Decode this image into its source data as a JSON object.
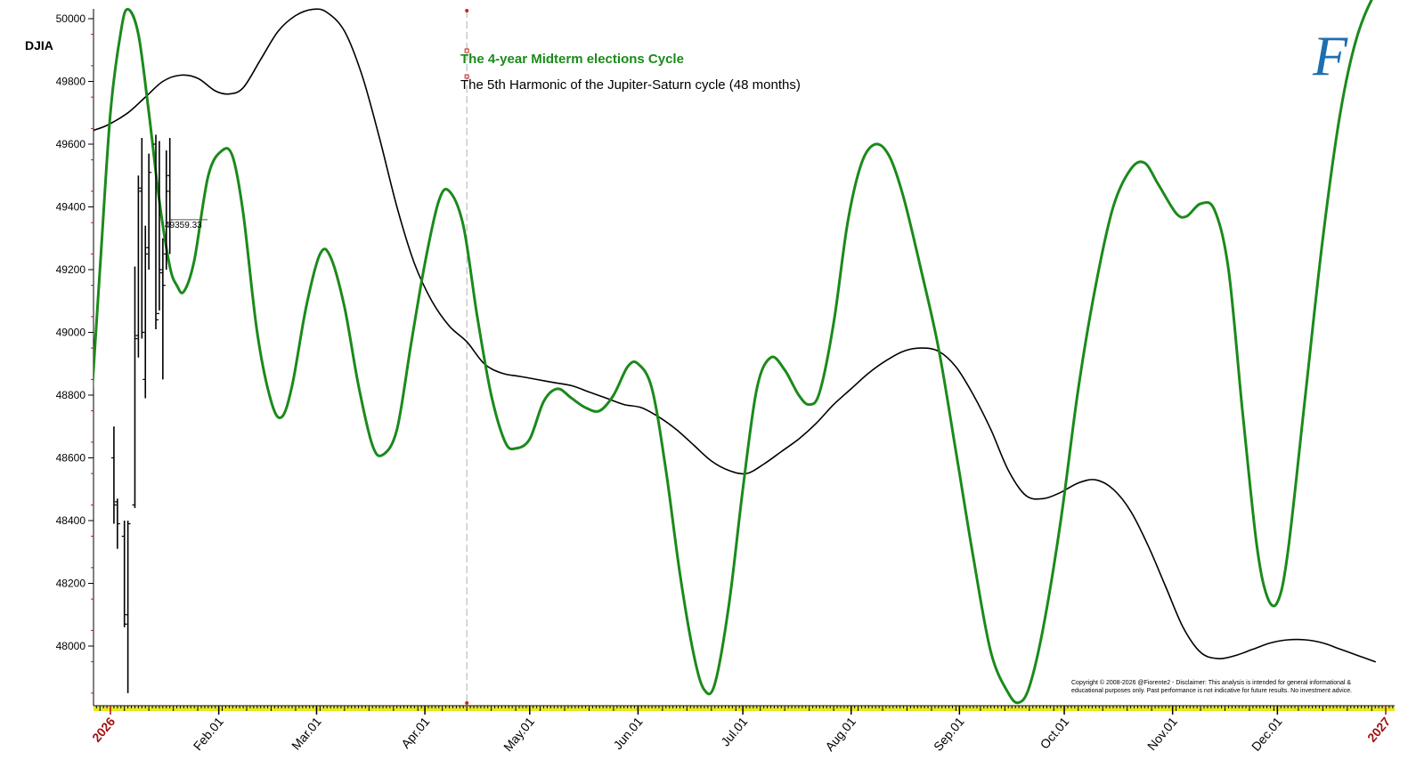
{
  "chart_data": {
    "type": "line",
    "symbol": "DJIA",
    "ylim": [
      47810,
      50040
    ],
    "y_ticks": [
      48000,
      48200,
      48400,
      48600,
      48800,
      49000,
      49200,
      49400,
      49600,
      49800,
      50000
    ],
    "y_tick_labels": [
      "48000",
      "48200",
      "48400",
      "48600",
      "48800",
      "49000",
      "49200",
      "49400",
      "49600",
      "49800",
      "50000"
    ],
    "x_range": [
      "2025-12-26",
      "2027-01-03"
    ],
    "x_ticks": [
      {
        "date": "2026-01-01",
        "label": "2026",
        "year": true
      },
      {
        "date": "2026-02-01",
        "label": "Feb.01",
        "year": false
      },
      {
        "date": "2026-03-01",
        "label": "Mar.01",
        "year": false
      },
      {
        "date": "2026-04-01",
        "label": "Apr.01",
        "year": false
      },
      {
        "date": "2026-05-01",
        "label": "May.01",
        "year": false
      },
      {
        "date": "2026-06-01",
        "label": "Jun.01",
        "year": false
      },
      {
        "date": "2026-07-01",
        "label": "Jul.01",
        "year": false
      },
      {
        "date": "2026-08-01",
        "label": "Aug.01",
        "year": false
      },
      {
        "date": "2026-09-01",
        "label": "Sep.01",
        "year": false
      },
      {
        "date": "2026-10-01",
        "label": "Oct.01",
        "year": false
      },
      {
        "date": "2026-11-01",
        "label": "Nov.01",
        "year": false
      },
      {
        "date": "2026-12-01",
        "label": "Dec.01",
        "year": false
      },
      {
        "date": "2027-01-01",
        "label": "2027",
        "year": true
      }
    ],
    "today_marker_date": "2026-04-13",
    "last_price": {
      "label": "49359.33",
      "value": 49359.33
    },
    "series": [
      {
        "name": "The 4-year Midterm elections Cycle",
        "color": "#1b8a1b",
        "points": [
          [
            "2025-12-26",
            48680
          ],
          [
            "2025-12-29",
            49200
          ],
          [
            "2026-01-01",
            49700
          ],
          [
            "2026-01-04",
            49960
          ],
          [
            "2026-01-06",
            50030
          ],
          [
            "2026-01-09",
            49950
          ],
          [
            "2026-01-12",
            49700
          ],
          [
            "2026-01-15",
            49420
          ],
          [
            "2026-01-18",
            49210
          ],
          [
            "2026-01-20",
            49150
          ],
          [
            "2026-01-22",
            49130
          ],
          [
            "2026-01-25",
            49230
          ],
          [
            "2026-01-29",
            49500
          ],
          [
            "2026-02-02",
            49580
          ],
          [
            "2026-02-05",
            49560
          ],
          [
            "2026-02-08",
            49380
          ],
          [
            "2026-02-12",
            49000
          ],
          [
            "2026-02-16",
            48780
          ],
          [
            "2026-02-19",
            48730
          ],
          [
            "2026-02-22",
            48830
          ],
          [
            "2026-02-26",
            49080
          ],
          [
            "2026-03-02",
            49250
          ],
          [
            "2026-03-05",
            49240
          ],
          [
            "2026-03-09",
            49080
          ],
          [
            "2026-03-13",
            48830
          ],
          [
            "2026-03-17",
            48640
          ],
          [
            "2026-03-20",
            48610
          ],
          [
            "2026-03-24",
            48690
          ],
          [
            "2026-03-28",
            48960
          ],
          [
            "2026-04-01",
            49220
          ],
          [
            "2026-04-05",
            49420
          ],
          [
            "2026-04-08",
            49450
          ],
          [
            "2026-04-12",
            49340
          ],
          [
            "2026-04-16",
            49050
          ],
          [
            "2026-04-20",
            48800
          ],
          [
            "2026-04-24",
            48650
          ],
          [
            "2026-04-27",
            48630
          ],
          [
            "2026-05-01",
            48660
          ],
          [
            "2026-05-05",
            48780
          ],
          [
            "2026-05-09",
            48820
          ],
          [
            "2026-05-13",
            48790
          ],
          [
            "2026-05-17",
            48760
          ],
          [
            "2026-05-21",
            48750
          ],
          [
            "2026-05-25",
            48800
          ],
          [
            "2026-05-29",
            48890
          ],
          [
            "2026-06-01",
            48900
          ],
          [
            "2026-06-05",
            48820
          ],
          [
            "2026-06-09",
            48560
          ],
          [
            "2026-06-13",
            48230
          ],
          [
            "2026-06-17",
            47970
          ],
          [
            "2026-06-20",
            47860
          ],
          [
            "2026-06-23",
            47880
          ],
          [
            "2026-06-27",
            48130
          ],
          [
            "2026-07-01",
            48500
          ],
          [
            "2026-07-05",
            48820
          ],
          [
            "2026-07-09",
            48920
          ],
          [
            "2026-07-13",
            48880
          ],
          [
            "2026-07-17",
            48800
          ],
          [
            "2026-07-20",
            48770
          ],
          [
            "2026-07-23",
            48810
          ],
          [
            "2026-07-27",
            49030
          ],
          [
            "2026-07-31",
            49350
          ],
          [
            "2026-08-04",
            49540
          ],
          [
            "2026-08-08",
            49600
          ],
          [
            "2026-08-12",
            49560
          ],
          [
            "2026-08-16",
            49430
          ],
          [
            "2026-08-21",
            49200
          ],
          [
            "2026-08-26",
            48950
          ],
          [
            "2026-08-31",
            48620
          ],
          [
            "2026-09-05",
            48280
          ],
          [
            "2026-09-10",
            47980
          ],
          [
            "2026-09-15",
            47850
          ],
          [
            "2026-09-18",
            47820
          ],
          [
            "2026-09-21",
            47870
          ],
          [
            "2026-09-25",
            48060
          ],
          [
            "2026-09-30",
            48400
          ],
          [
            "2026-10-05",
            48820
          ],
          [
            "2026-10-10",
            49150
          ],
          [
            "2026-10-15",
            49400
          ],
          [
            "2026-10-20",
            49520
          ],
          [
            "2026-10-24",
            49540
          ],
          [
            "2026-10-28",
            49470
          ],
          [
            "2026-11-02",
            49380
          ],
          [
            "2026-11-05",
            49370
          ],
          [
            "2026-11-09",
            49410
          ],
          [
            "2026-11-13",
            49390
          ],
          [
            "2026-11-17",
            49200
          ],
          [
            "2026-11-21",
            48750
          ],
          [
            "2026-11-25",
            48330
          ],
          [
            "2026-11-28",
            48160
          ],
          [
            "2026-12-01",
            48140
          ],
          [
            "2026-12-04",
            48300
          ],
          [
            "2026-12-09",
            48800
          ],
          [
            "2026-12-14",
            49300
          ],
          [
            "2026-12-19",
            49700
          ],
          [
            "2026-12-24",
            49950
          ],
          [
            "2026-12-30",
            50100
          ],
          [
            "2027-01-03",
            50130
          ]
        ]
      },
      {
        "name": "The 5th Harmonic of the Jupiter-Saturn cycle (48 months)",
        "color": "#000000",
        "points": [
          [
            "2025-12-26",
            49640
          ],
          [
            "2025-12-31",
            49660
          ],
          [
            "2026-01-06",
            49700
          ],
          [
            "2026-01-11",
            49750
          ],
          [
            "2026-01-16",
            49800
          ],
          [
            "2026-01-21",
            49820
          ],
          [
            "2026-01-26",
            49810
          ],
          [
            "2026-01-31",
            49770
          ],
          [
            "2026-02-04",
            49760
          ],
          [
            "2026-02-08",
            49780
          ],
          [
            "2026-02-13",
            49870
          ],
          [
            "2026-02-18",
            49960
          ],
          [
            "2026-02-23",
            50010
          ],
          [
            "2026-02-28",
            50030
          ],
          [
            "2026-03-04",
            50020
          ],
          [
            "2026-03-09",
            49960
          ],
          [
            "2026-03-14",
            49820
          ],
          [
            "2026-03-19",
            49620
          ],
          [
            "2026-03-24",
            49400
          ],
          [
            "2026-03-29",
            49220
          ],
          [
            "2026-04-03",
            49100
          ],
          [
            "2026-04-08",
            49020
          ],
          [
            "2026-04-13",
            48970
          ],
          [
            "2026-04-18",
            48900
          ],
          [
            "2026-04-23",
            48870
          ],
          [
            "2026-04-28",
            48860
          ],
          [
            "2026-05-03",
            48850
          ],
          [
            "2026-05-08",
            48840
          ],
          [
            "2026-05-13",
            48830
          ],
          [
            "2026-05-18",
            48810
          ],
          [
            "2026-05-23",
            48790
          ],
          [
            "2026-05-28",
            48770
          ],
          [
            "2026-06-02",
            48760
          ],
          [
            "2026-06-07",
            48730
          ],
          [
            "2026-06-12",
            48690
          ],
          [
            "2026-06-17",
            48640
          ],
          [
            "2026-06-22",
            48590
          ],
          [
            "2026-06-27",
            48560
          ],
          [
            "2026-07-02",
            48550
          ],
          [
            "2026-07-07",
            48580
          ],
          [
            "2026-07-12",
            48620
          ],
          [
            "2026-07-17",
            48660
          ],
          [
            "2026-07-22",
            48710
          ],
          [
            "2026-07-27",
            48770
          ],
          [
            "2026-08-01",
            48820
          ],
          [
            "2026-08-06",
            48870
          ],
          [
            "2026-08-11",
            48910
          ],
          [
            "2026-08-16",
            48940
          ],
          [
            "2026-08-21",
            48950
          ],
          [
            "2026-08-26",
            48940
          ],
          [
            "2026-08-31",
            48890
          ],
          [
            "2026-09-05",
            48800
          ],
          [
            "2026-09-10",
            48690
          ],
          [
            "2026-09-15",
            48560
          ],
          [
            "2026-09-20",
            48480
          ],
          [
            "2026-09-25",
            48470
          ],
          [
            "2026-09-30",
            48490
          ],
          [
            "2026-10-05",
            48520
          ],
          [
            "2026-10-10",
            48530
          ],
          [
            "2026-10-15",
            48500
          ],
          [
            "2026-10-20",
            48430
          ],
          [
            "2026-10-25",
            48320
          ],
          [
            "2026-10-30",
            48190
          ],
          [
            "2026-11-04",
            48060
          ],
          [
            "2026-11-09",
            47980
          ],
          [
            "2026-11-14",
            47960
          ],
          [
            "2026-11-19",
            47970
          ],
          [
            "2026-11-24",
            47990
          ],
          [
            "2026-11-29",
            48010
          ],
          [
            "2026-12-04",
            48020
          ],
          [
            "2026-12-09",
            48020
          ],
          [
            "2026-12-14",
            48010
          ],
          [
            "2026-12-19",
            47990
          ],
          [
            "2026-12-24",
            47970
          ],
          [
            "2026-12-29",
            47950
          ]
        ]
      }
    ],
    "ohlc": [
      {
        "date": "2026-01-02",
        "high": 48700,
        "low": 48390,
        "open": 48600,
        "close": 48450
      },
      {
        "date": "2026-01-03",
        "high": 48470,
        "low": 48310,
        "open": 48460,
        "close": 48390
      },
      {
        "date": "2026-01-05",
        "high": 48400,
        "low": 48060,
        "open": 48350,
        "close": 48070
      },
      {
        "date": "2026-01-06",
        "high": 48400,
        "low": 47850,
        "open": 48100,
        "close": 48390
      },
      {
        "date": "2026-01-08",
        "high": 49210,
        "low": 48440,
        "open": 48450,
        "close": 48980
      },
      {
        "date": "2026-01-09",
        "high": 49500,
        "low": 48920,
        "open": 48990,
        "close": 49460
      },
      {
        "date": "2026-01-10",
        "high": 49620,
        "low": 48980,
        "open": 49450,
        "close": 49000
      },
      {
        "date": "2026-01-11",
        "high": 49340,
        "low": 48790,
        "open": 48850,
        "close": 49250
      },
      {
        "date": "2026-01-12",
        "high": 49570,
        "low": 49200,
        "open": 49270,
        "close": 49510
      },
      {
        "date": "2026-01-14",
        "high": 49630,
        "low": 49010,
        "open": 49600,
        "close": 49040
      },
      {
        "date": "2026-01-15",
        "high": 49610,
        "low": 49070,
        "open": 49060,
        "close": 49200
      },
      {
        "date": "2026-01-16",
        "high": 49300,
        "low": 48850,
        "open": 49190,
        "close": 49150
      },
      {
        "date": "2026-01-17",
        "high": 49580,
        "low": 49200,
        "open": 49250,
        "close": 49450
      },
      {
        "date": "2026-01-18",
        "high": 49620,
        "low": 49250,
        "open": 49500,
        "close": 49359
      }
    ]
  },
  "copyright_lines": [
    "Copyright © 2008-2026 @Fiorente2 -  Disclaimer: This analysis is intended for general informational &",
    "educational purposes only. Past performance is not indicative for future results. No investment advice."
  ],
  "logo_letter": "F",
  "colors": {
    "green": "#1b8a1b",
    "black": "#000000",
    "axis_red": "#c01818",
    "tick_yellow": "#e8e81a",
    "year_red": "#a01010",
    "logo_blue": "#1e6fb0",
    "marker_red": "#d02020"
  }
}
